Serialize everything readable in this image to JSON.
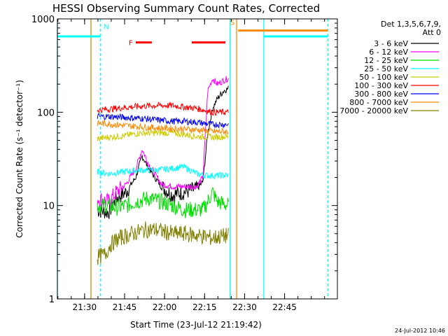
{
  "chart_data": {
    "type": "line",
    "title": "HESSI Observing Summary Count Rates, Corrected",
    "xlabel": "Start Time (23-Jul-12 21:19:42)",
    "ylabel": "Corrected Count Rate (s⁻¹ detector⁻¹)",
    "yscale": "log",
    "ylim": [
      1,
      1000
    ],
    "yticks": [
      {
        "v": 1,
        "label": "1"
      },
      {
        "v": 10,
        "label": "10"
      },
      {
        "v": 100,
        "label": "100"
      },
      {
        "v": 1000,
        "label": "1000"
      }
    ],
    "xlim": [
      21.33,
      23.08
    ],
    "xticks": [
      {
        "v": 21.5,
        "label": "21:30"
      },
      {
        "v": 21.75,
        "label": "21:45"
      },
      {
        "v": 22.0,
        "label": "22:00"
      },
      {
        "v": 22.25,
        "label": "22:15"
      },
      {
        "v": 22.5,
        "label": "22:30"
      },
      {
        "v": 22.75,
        "label": "22:45"
      }
    ],
    "grid": false,
    "legend": {
      "position": "right",
      "header": [
        "Det 1,3,5,6,7,9,",
        "Att 0"
      ]
    },
    "series": [
      {
        "name": "3 - 6 keV",
        "color": "#000000",
        "x": [
          21.58,
          21.65,
          21.7,
          21.76,
          21.82,
          21.86,
          21.9,
          21.98,
          22.05,
          22.12,
          22.2,
          22.24,
          22.27,
          22.3,
          22.33,
          22.37,
          22.4
        ],
        "y": [
          9,
          8.5,
          12,
          14,
          20,
          34,
          25,
          16,
          13,
          14,
          15,
          18,
          60,
          110,
          140,
          170,
          180
        ]
      },
      {
        "name": "6 - 12 keV",
        "color": "#ff00ff",
        "x": [
          21.58,
          21.65,
          21.7,
          21.76,
          21.82,
          21.86,
          21.9,
          21.98,
          22.05,
          22.12,
          22.2,
          22.24,
          22.27,
          22.3,
          22.33,
          22.37,
          22.4
        ],
        "y": [
          12,
          11,
          14,
          17,
          25,
          40,
          28,
          17,
          16,
          16,
          16,
          20,
          170,
          230,
          200,
          220,
          230
        ]
      },
      {
        "name": "12 - 25 keV",
        "color": "#00e000",
        "x": [
          21.58,
          21.65,
          21.7,
          21.76,
          21.82,
          21.9,
          21.98,
          22.05,
          22.12,
          22.2,
          22.24,
          22.27,
          22.3,
          22.33,
          22.4
        ],
        "y": [
          10,
          10,
          9.5,
          10,
          11,
          12,
          11,
          10,
          9,
          9,
          9,
          11,
          14,
          11,
          10
        ]
      },
      {
        "name": "25 - 50 keV",
        "color": "#00ffff",
        "x": [
          21.58,
          21.65,
          21.75,
          21.85,
          21.95,
          22.05,
          22.12,
          22.2,
          22.26,
          22.3,
          22.4
        ],
        "y": [
          23,
          22,
          23,
          24,
          24,
          25,
          26,
          22,
          21,
          21,
          21
        ]
      },
      {
        "name": "50 - 100 keV",
        "color": "#cccc00",
        "x": [
          21.58,
          21.65,
          21.75,
          21.85,
          21.95,
          22.05,
          22.12,
          22.2,
          22.3,
          22.4
        ],
        "y": [
          52,
          54,
          56,
          60,
          60,
          60,
          58,
          55,
          54,
          55
        ]
      },
      {
        "name": "100 - 300 keV",
        "color": "#ff0000",
        "x": [
          21.58,
          21.65,
          21.75,
          21.85,
          21.95,
          22.05,
          22.12,
          22.2,
          22.3,
          22.4
        ],
        "y": [
          105,
          108,
          112,
          116,
          118,
          118,
          114,
          110,
          100,
          100
        ]
      },
      {
        "name": "300 - 800 keV",
        "color": "#0000ff",
        "x": [
          21.58,
          21.65,
          21.75,
          21.85,
          21.95,
          22.05,
          22.12,
          22.2,
          22.3,
          22.4
        ],
        "y": [
          90,
          90,
          88,
          86,
          83,
          80,
          80,
          78,
          74,
          74
        ]
      },
      {
        "name": "800 - 7000 keV",
        "color": "#ff8800",
        "x": [
          21.58,
          21.65,
          21.75,
          21.85,
          21.95,
          22.05,
          22.12,
          22.2,
          22.3,
          22.4
        ],
        "y": [
          76,
          75,
          72,
          70,
          68,
          67,
          66,
          65,
          62,
          62
        ]
      },
      {
        "name": "7000 - 20000 keV",
        "color": "#808000",
        "x": [
          21.58,
          21.63,
          21.66,
          21.72,
          21.8,
          21.88,
          21.95,
          22.05,
          22.12,
          22.2,
          22.3,
          22.4
        ],
        "y": [
          2.8,
          3,
          3.8,
          4.5,
          5,
          5.5,
          5.5,
          5,
          5,
          4.8,
          4.5,
          4.8
        ]
      }
    ],
    "state_lines": [
      {
        "color": "#00ffff",
        "x": [
          21.33,
          21.6
        ],
        "y": 650
      },
      {
        "color": "#ff8800",
        "x": [
          22.46,
          23.02
        ],
        "y": 750
      },
      {
        "color": "#00ffff",
        "x": [
          22.62,
          23.02
        ],
        "y": 650
      }
    ],
    "flare_bars": [
      {
        "label": "F",
        "color": "#ff0000",
        "x": [
          21.82,
          21.92
        ],
        "y": 560
      },
      {
        "label": "",
        "color": "#ff0000",
        "x": [
          22.17,
          22.38
        ],
        "y": 560
      }
    ],
    "vlines": [
      {
        "color": "#00ffff",
        "style": "solid",
        "x": 21.33
      },
      {
        "color": "#00ffff",
        "style": "solid",
        "x": 21.54
      },
      {
        "color": "#00ffff",
        "style": "dashed",
        "x": 21.6
      },
      {
        "color": "#ff8800",
        "style": "solid",
        "x": 21.54
      },
      {
        "color": "#ff8800",
        "style": "solid",
        "x": 22.41
      },
      {
        "color": "#ff8800",
        "style": "solid",
        "x": 22.45
      },
      {
        "color": "#00ffff",
        "style": "solid",
        "x": 22.41
      },
      {
        "color": "#00ffff",
        "style": "solid",
        "x": 22.62
      },
      {
        "color": "#00ffff",
        "style": "dashed",
        "x": 23.02
      }
    ],
    "annotations": [
      {
        "text": "N",
        "color": "#00ffff",
        "x": 21.62,
        "y": 780
      },
      {
        "text": "S",
        "color": "#ff8800",
        "x": 22.41,
        "y": 860
      }
    ]
  },
  "footer": {
    "timestamp": "24-Jul-2012 10:46"
  }
}
